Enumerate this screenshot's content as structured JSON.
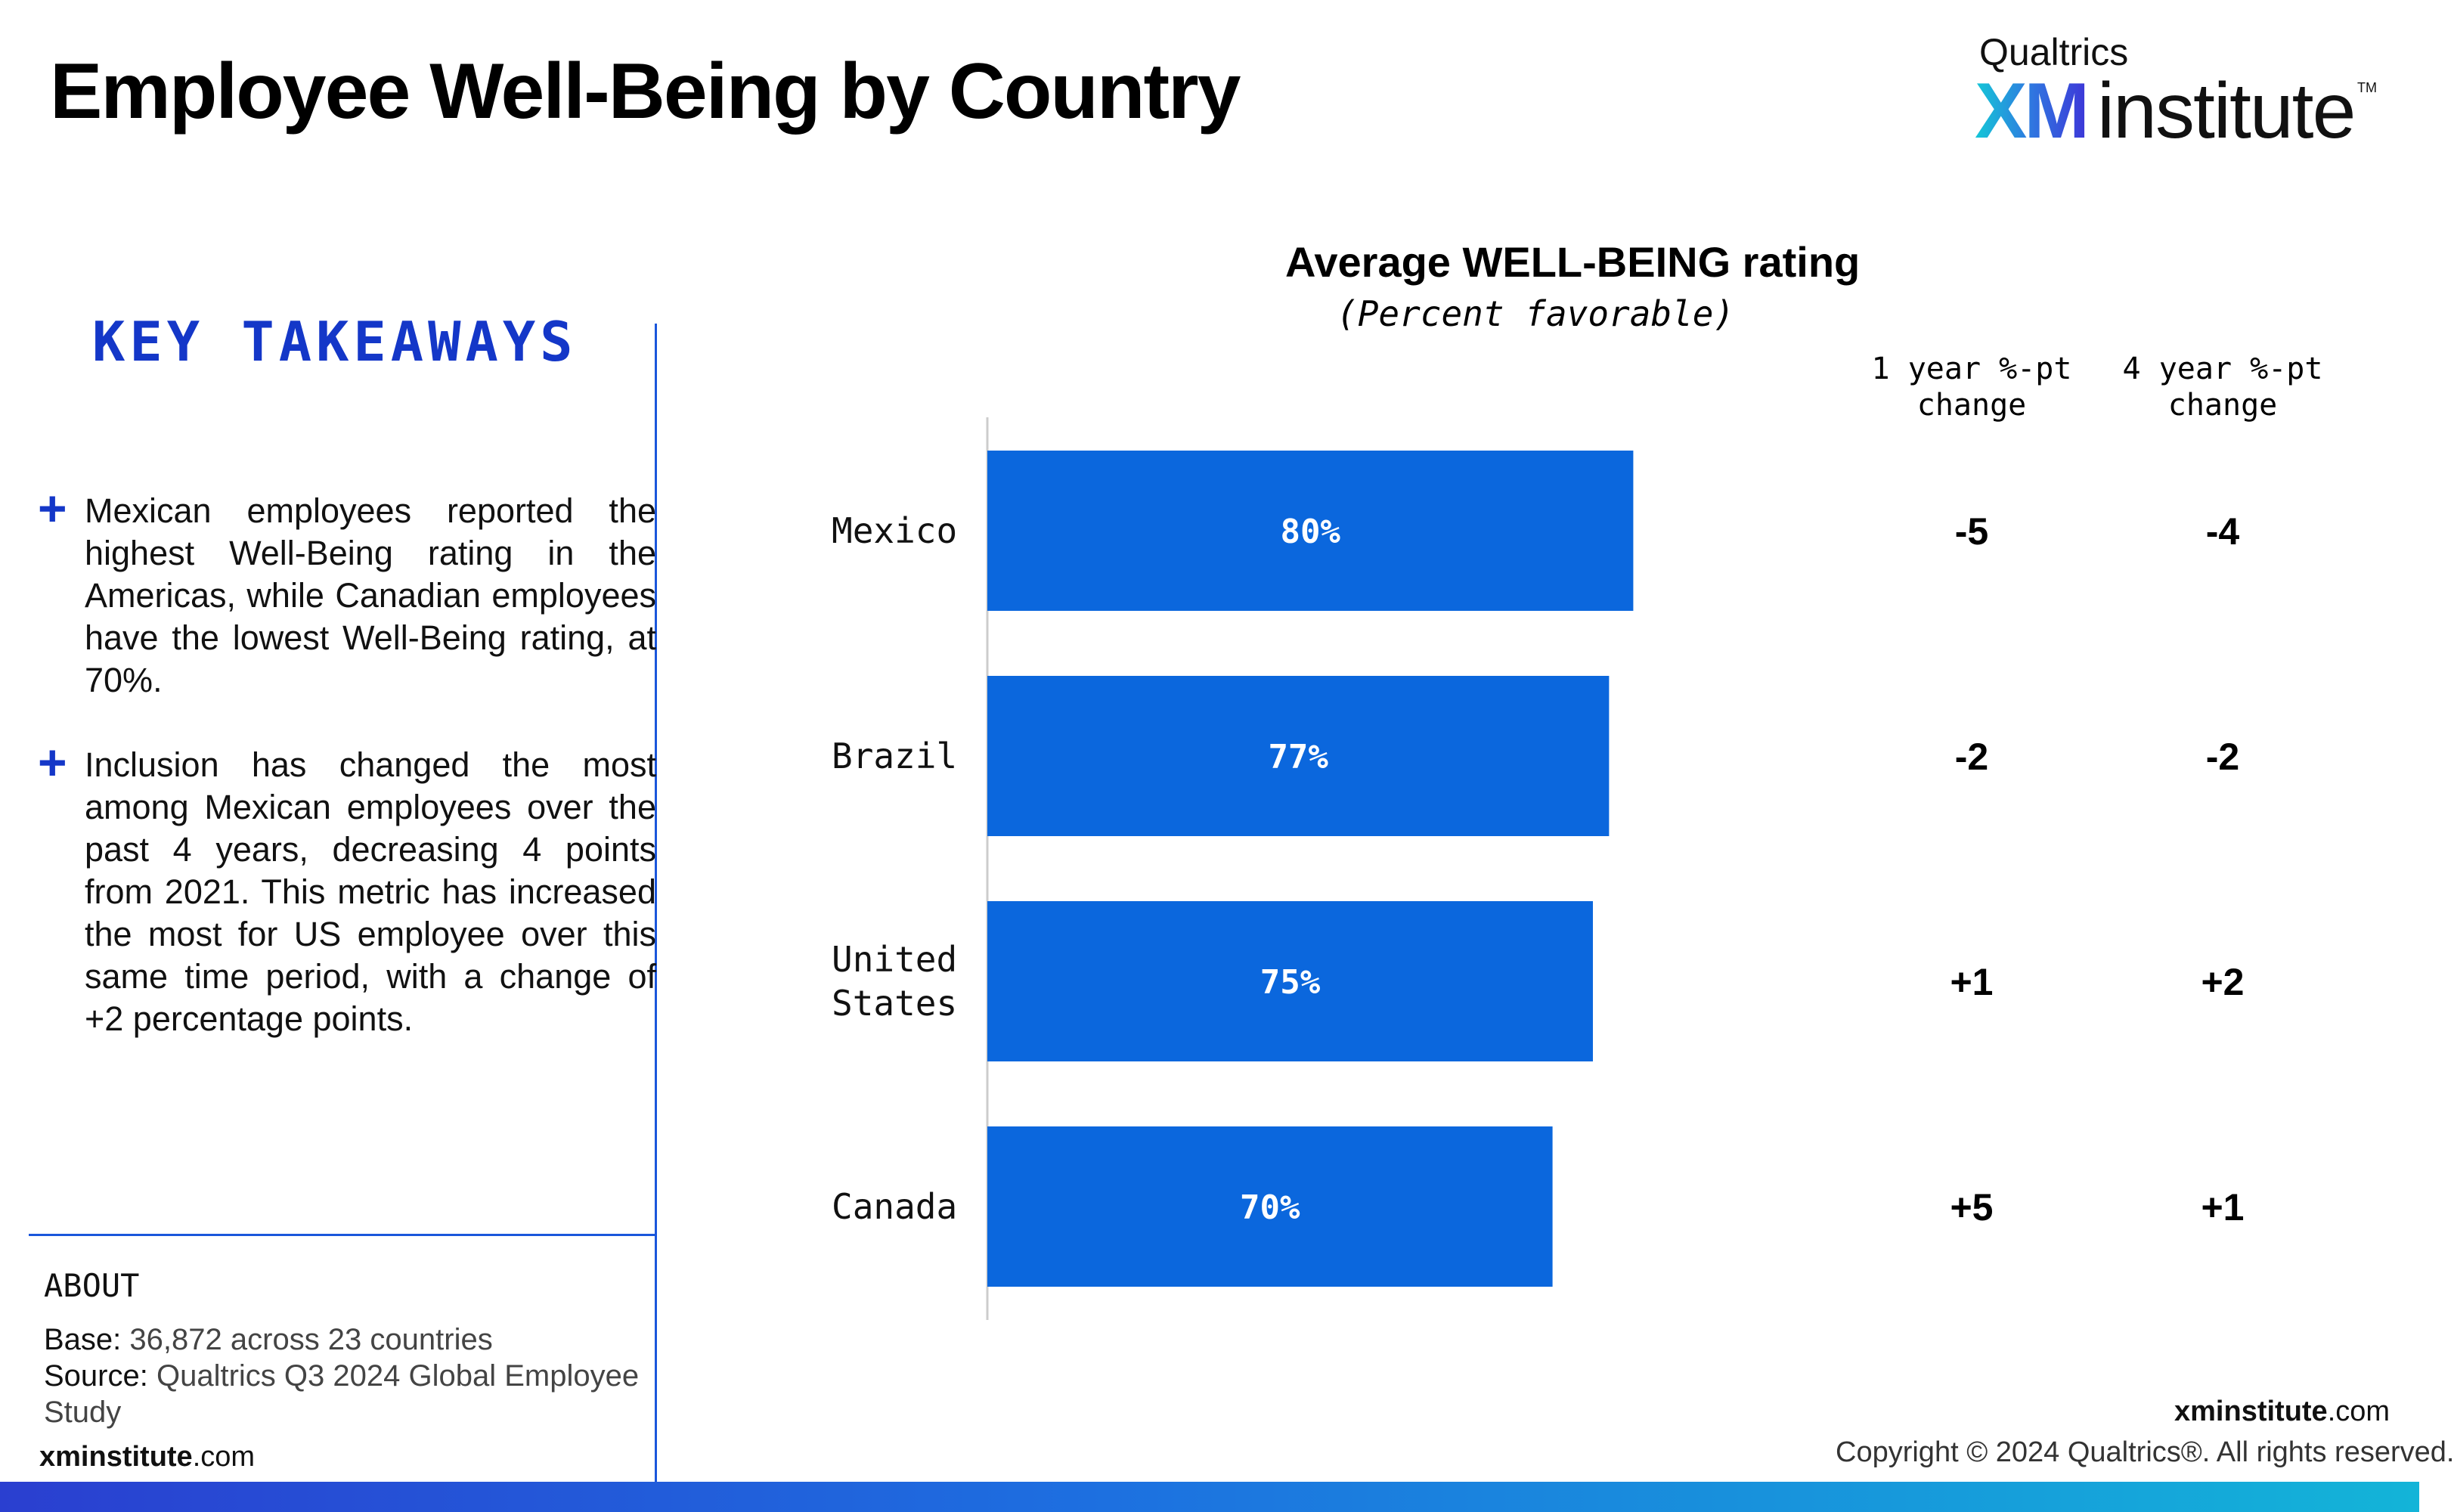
{
  "page": {
    "title": "Employee Well-Being by Country"
  },
  "logo": {
    "company": "Qualtrics",
    "xm": "XM",
    "word": "institute",
    "tm": "TM"
  },
  "takeaways": {
    "heading": "KEY TAKEAWAYS",
    "plus_symbol": "+",
    "items": [
      "Mexican employees reported the highest Well-Being rating in the Americas, while Canadian employees have the lowest Well-Being rating, at 70%.",
      "Inclusion has changed the most among Mexican employees over the past 4 years, decreasing 4 points from 2021. This metric has increased the most for US employee over this same time period, with a change of +2 percentage points."
    ]
  },
  "about": {
    "label": "ABOUT",
    "base_label": "Base:",
    "base_value": "36,872 across 23 countries",
    "source_label": "Source:",
    "source_value": "Qualtrics Q3 2024 Global Employee Study"
  },
  "footer": {
    "site_bold": "xminstitute",
    "site_rest": ".com",
    "copyright": "Copyright © 2024 Qualtrics®. All rights reserved."
  },
  "colors": {
    "bar": "#0b67dd",
    "accent": "#1437c8",
    "axis": "#cccccc"
  },
  "chart_data": {
    "type": "bar",
    "orientation": "horizontal",
    "title": "Average WELL-BEING rating",
    "subtitle": "(Percent favorable)",
    "categories": [
      "Mexico",
      "Brazil",
      "United States",
      "Canada"
    ],
    "values": [
      80,
      77,
      75,
      70
    ],
    "value_labels": [
      "80%",
      "77%",
      "75%",
      "70%"
    ],
    "value_unit": "%",
    "columns": [
      {
        "header": "1 year %-pt change",
        "values": [
          "-5",
          "-2",
          "+1",
          "+5"
        ]
      },
      {
        "header": "4 year %-pt change",
        "values": [
          "-4",
          "-2",
          "+2",
          "+1"
        ]
      }
    ],
    "grid": false,
    "legend": "none"
  }
}
